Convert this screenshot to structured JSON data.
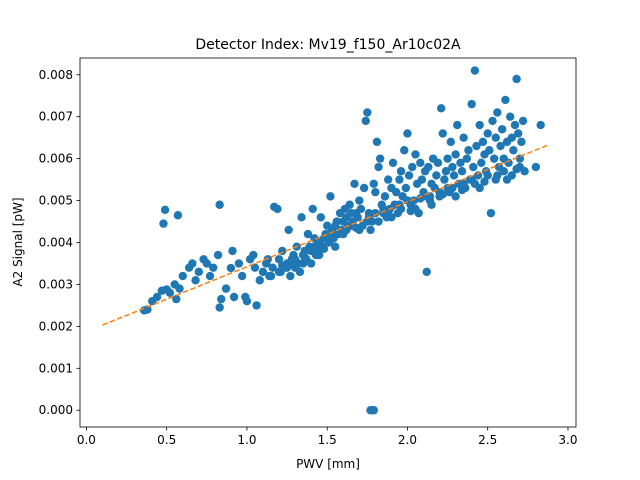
{
  "chart_data": {
    "type": "scatter",
    "title": "Detector Index: Mv19_f150_Ar10c02A",
    "xlabel": "PWV [mm]",
    "ylabel": "A2 Signal [pW]",
    "xlim": [
      -0.04,
      3.05
    ],
    "ylim": [
      -0.0004,
      0.0084
    ],
    "xticks": [
      0.0,
      0.5,
      1.0,
      1.5,
      2.0,
      2.5,
      3.0
    ],
    "xtick_labels": [
      "0.0",
      "0.5",
      "1.0",
      "1.5",
      "2.0",
      "2.5",
      "3.0"
    ],
    "yticks": [
      0.0,
      0.001,
      0.002,
      0.003,
      0.004,
      0.005,
      0.006,
      0.007,
      0.008
    ],
    "ytick_labels": [
      "0.000",
      "0.001",
      "0.002",
      "0.003",
      "0.004",
      "0.005",
      "0.006",
      "0.007",
      "0.008"
    ],
    "series": [
      {
        "name": "data",
        "style": "scatter",
        "color": "#1f77b4",
        "points": [
          [
            0.38,
            0.0024
          ],
          [
            0.36,
            0.00238
          ],
          [
            0.41,
            0.0026
          ],
          [
            0.44,
            0.0027
          ],
          [
            0.47,
            0.00285
          ],
          [
            0.5,
            0.00288
          ],
          [
            0.52,
            0.0028
          ],
          [
            0.55,
            0.003
          ],
          [
            0.58,
            0.0029
          ],
          [
            0.56,
            0.00265
          ],
          [
            0.48,
            0.00445
          ],
          [
            0.49,
            0.00478
          ],
          [
            0.57,
            0.00465
          ],
          [
            0.6,
            0.0032
          ],
          [
            0.64,
            0.0034
          ],
          [
            0.66,
            0.0035
          ],
          [
            0.68,
            0.0031
          ],
          [
            0.7,
            0.0033
          ],
          [
            0.73,
            0.0036
          ],
          [
            0.75,
            0.0035
          ],
          [
            0.77,
            0.0032
          ],
          [
            0.79,
            0.0034
          ],
          [
            0.82,
            0.0037
          ],
          [
            0.83,
            0.0049
          ],
          [
            0.84,
            0.00265
          ],
          [
            0.83,
            0.00245
          ],
          [
            0.87,
            0.0029
          ],
          [
            0.9,
            0.00339
          ],
          [
            0.91,
            0.0038
          ],
          [
            0.92,
            0.0027
          ],
          [
            0.95,
            0.0035
          ],
          [
            0.97,
            0.0032
          ],
          [
            0.99,
            0.0027
          ],
          [
            1.0,
            0.0026
          ],
          [
            1.02,
            0.0036
          ],
          [
            1.04,
            0.0037
          ],
          [
            1.05,
            0.0034
          ],
          [
            1.06,
            0.0025
          ],
          [
            1.08,
            0.0031
          ],
          [
            1.1,
            0.0033
          ],
          [
            1.12,
            0.0035
          ],
          [
            1.13,
            0.0036
          ],
          [
            1.14,
            0.0032
          ],
          [
            1.16,
            0.0034
          ],
          [
            1.17,
            0.00485
          ],
          [
            1.19,
            0.0048
          ],
          [
            1.2,
            0.0036
          ],
          [
            1.21,
            0.0033
          ],
          [
            1.22,
            0.0038
          ],
          [
            1.24,
            0.0034
          ],
          [
            1.25,
            0.0035
          ],
          [
            1.26,
            0.0043
          ],
          [
            1.27,
            0.0032
          ],
          [
            1.28,
            0.0036
          ],
          [
            1.29,
            0.0037
          ],
          [
            1.3,
            0.0034
          ],
          [
            1.31,
            0.0039
          ],
          [
            1.32,
            0.0035
          ],
          [
            1.33,
            0.0033
          ],
          [
            1.34,
            0.0046
          ],
          [
            1.35,
            0.0037
          ],
          [
            1.36,
            0.0038
          ],
          [
            1.37,
            0.0036
          ],
          [
            1.38,
            0.0042
          ],
          [
            1.39,
            0.0039
          ],
          [
            1.4,
            0.0035
          ],
          [
            1.41,
            0.0048
          ],
          [
            1.42,
            0.0041
          ],
          [
            1.43,
            0.0037
          ],
          [
            1.44,
            0.0038
          ],
          [
            1.45,
            0.004
          ],
          [
            1.46,
            0.0046
          ],
          [
            1.47,
            0.0039
          ],
          [
            1.48,
            0.0041
          ],
          [
            1.49,
            0.0042
          ],
          [
            1.5,
            0.0044
          ],
          [
            1.51,
            0.004
          ],
          [
            1.52,
            0.0051
          ],
          [
            1.53,
            0.0043
          ],
          [
            1.54,
            0.0041
          ],
          [
            1.55,
            0.0044
          ],
          [
            1.56,
            0.0045
          ],
          [
            1.57,
            0.0042
          ],
          [
            1.58,
            0.0047
          ],
          [
            1.59,
            0.0043
          ],
          [
            1.6,
            0.0045
          ],
          [
            1.61,
            0.0048
          ],
          [
            1.62,
            0.0046
          ],
          [
            1.63,
            0.0044
          ],
          [
            1.64,
            0.0049
          ],
          [
            1.65,
            0.0047
          ],
          [
            1.66,
            0.0045
          ],
          [
            1.67,
            0.0054
          ],
          [
            1.68,
            0.0047
          ],
          [
            1.69,
            0.0046
          ],
          [
            1.7,
            0.005
          ],
          [
            1.71,
            0.0048
          ],
          [
            1.72,
            0.0044
          ],
          [
            1.73,
            0.0053
          ],
          [
            1.74,
            0.0069
          ],
          [
            1.75,
            0.0071
          ],
          [
            1.76,
            0.0047
          ],
          [
            1.77,
            0.0043
          ],
          [
            1.78,
            0.0045
          ],
          [
            1.79,
            0.0054
          ],
          [
            1.8,
            0.0052
          ],
          [
            1.81,
            0.0064
          ],
          [
            1.82,
            0.0058
          ],
          [
            1.83,
            0.006
          ],
          [
            1.84,
            0.0049
          ],
          [
            1.85,
            0.0047
          ],
          [
            1.86,
            0.0051
          ],
          [
            1.87,
            0.0046
          ],
          [
            1.88,
            0.0055
          ],
          [
            1.89,
            0.0048
          ],
          [
            1.9,
            0.0053
          ],
          [
            1.91,
            0.0059
          ],
          [
            1.92,
            0.0049
          ],
          [
            1.93,
            0.0052
          ],
          [
            1.94,
            0.0047
          ],
          [
            1.95,
            0.0055
          ],
          [
            1.96,
            0.0057
          ],
          [
            1.97,
            0.0051
          ],
          [
            1.98,
            0.0062
          ],
          [
            1.99,
            0.0053
          ],
          [
            2.0,
            0.0066
          ],
          [
            2.01,
            0.0056
          ],
          [
            2.02,
            0.0049
          ],
          [
            2.03,
            0.0058
          ],
          [
            2.04,
            0.005
          ],
          [
            2.05,
            0.0061
          ],
          [
            2.06,
            0.0054
          ],
          [
            2.07,
            0.0047
          ],
          [
            2.08,
            0.0059
          ],
          [
            2.09,
            0.0055
          ],
          [
            2.1,
            0.0052
          ],
          [
            2.11,
            0.0057
          ],
          [
            2.12,
            0.0033
          ],
          [
            2.13,
            0.0058
          ],
          [
            2.14,
            0.0051
          ],
          [
            2.15,
            0.0054
          ],
          [
            2.16,
            0.006
          ],
          [
            2.17,
            0.0053
          ],
          [
            2.18,
            0.0056
          ],
          [
            2.19,
            0.0059
          ],
          [
            2.2,
            0.0051
          ],
          [
            2.21,
            0.0072
          ],
          [
            2.22,
            0.0066
          ],
          [
            2.23,
            0.0055
          ],
          [
            2.24,
            0.0057
          ],
          [
            2.25,
            0.006
          ],
          [
            2.26,
            0.0052
          ],
          [
            2.27,
            0.0064
          ],
          [
            2.28,
            0.0058
          ],
          [
            2.29,
            0.0056
          ],
          [
            2.3,
            0.0061
          ],
          [
            2.31,
            0.0068
          ],
          [
            2.32,
            0.0054
          ],
          [
            2.33,
            0.0059
          ],
          [
            2.34,
            0.0057
          ],
          [
            2.35,
            0.0065
          ],
          [
            2.36,
            0.0053
          ],
          [
            2.37,
            0.006
          ],
          [
            2.38,
            0.0062
          ],
          [
            2.39,
            0.0055
          ],
          [
            2.4,
            0.0073
          ],
          [
            2.41,
            0.0058
          ],
          [
            2.42,
            0.0081
          ],
          [
            2.43,
            0.0063
          ],
          [
            2.44,
            0.0056
          ],
          [
            2.45,
            0.0068
          ],
          [
            2.46,
            0.0059
          ],
          [
            2.47,
            0.0064
          ],
          [
            2.48,
            0.0061
          ],
          [
            2.49,
            0.0057
          ],
          [
            2.5,
            0.0066
          ],
          [
            2.51,
            0.0062
          ],
          [
            2.52,
            0.0047
          ],
          [
            2.53,
            0.0069
          ],
          [
            2.54,
            0.006
          ],
          [
            2.55,
            0.0065
          ],
          [
            2.56,
            0.0071
          ],
          [
            2.57,
            0.0058
          ],
          [
            2.58,
            0.0063
          ],
          [
            2.59,
            0.0067
          ],
          [
            2.6,
            0.006
          ],
          [
            2.61,
            0.0074
          ],
          [
            2.62,
            0.0064
          ],
          [
            2.63,
            0.0059
          ],
          [
            2.64,
            0.007
          ],
          [
            2.65,
            0.0065
          ],
          [
            2.66,
            0.0062
          ],
          [
            2.67,
            0.0068
          ],
          [
            2.68,
            0.0079
          ],
          [
            2.69,
            0.0066
          ],
          [
            2.7,
            0.006
          ],
          [
            2.71,
            0.0064
          ],
          [
            2.72,
            0.0069
          ],
          [
            2.73,
            0.0057
          ],
          [
            2.8,
            0.0058
          ],
          [
            2.83,
            0.0068
          ],
          [
            1.2,
            0.0033
          ],
          [
            1.25,
            0.0034
          ],
          [
            1.3,
            0.0036
          ],
          [
            1.35,
            0.0035
          ],
          [
            1.4,
            0.0038
          ],
          [
            1.45,
            0.0037
          ],
          [
            1.5,
            0.0041
          ],
          [
            1.55,
            0.0039
          ],
          [
            1.6,
            0.0042
          ],
          [
            1.65,
            0.0044
          ],
          [
            1.7,
            0.0043
          ],
          [
            1.75,
            0.0045
          ],
          [
            1.8,
            0.0047
          ],
          [
            1.85,
            0.0048
          ],
          [
            1.9,
            0.0046
          ],
          [
            1.95,
            0.0049
          ],
          [
            2.0,
            0.005
          ],
          [
            2.05,
            0.0048
          ],
          [
            2.1,
            0.0051
          ],
          [
            2.15,
            0.0049
          ],
          [
            2.2,
            0.0052
          ],
          [
            2.25,
            0.0053
          ],
          [
            2.3,
            0.0051
          ],
          [
            2.35,
            0.0054
          ],
          [
            2.4,
            0.0055
          ],
          [
            2.45,
            0.0053
          ],
          [
            2.5,
            0.0056
          ],
          [
            2.55,
            0.0055
          ],
          [
            2.6,
            0.0057
          ],
          [
            2.65,
            0.0056
          ],
          [
            2.7,
            0.0058
          ],
          [
            1.15,
            0.0032
          ],
          [
            1.22,
            0.00345
          ],
          [
            1.28,
            0.0035
          ],
          [
            1.36,
            0.00365
          ],
          [
            1.42,
            0.0039
          ],
          [
            1.48,
            0.00385
          ],
          [
            1.54,
            0.00415
          ],
          [
            1.62,
            0.0043
          ],
          [
            1.68,
            0.00435
          ],
          [
            1.76,
            0.0046
          ],
          [
            1.82,
            0.0045
          ],
          [
            1.88,
            0.0047
          ],
          [
            1.96,
            0.0048
          ],
          [
            2.02,
            0.00475
          ],
          [
            2.08,
            0.00505
          ],
          [
            2.14,
            0.005
          ],
          [
            2.22,
            0.00515
          ],
          [
            2.28,
            0.0053
          ],
          [
            2.34,
            0.00525
          ],
          [
            2.42,
            0.0054
          ],
          [
            2.48,
            0.00545
          ],
          [
            2.56,
            0.0056
          ],
          [
            2.62,
            0.0055
          ],
          [
            2.68,
            0.00575
          ],
          [
            1.78,
            0.0
          ],
          [
            1.77,
            0.0
          ],
          [
            1.79,
            0.0
          ]
        ]
      }
    ],
    "fit_line": {
      "name": "fit",
      "style": "dashed",
      "color": "#ff7f0e",
      "x": [
        0.1,
        2.88
      ],
      "y": [
        0.00203,
        0.00633
      ]
    }
  }
}
